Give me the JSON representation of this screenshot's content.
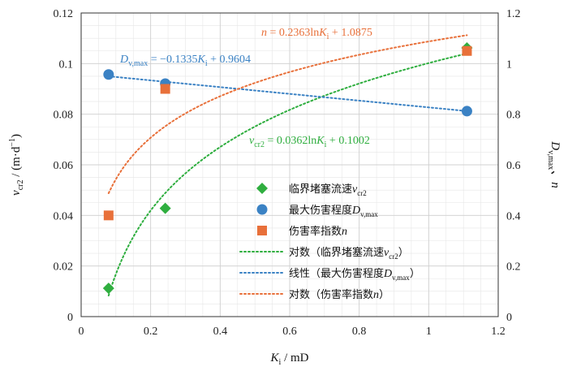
{
  "colors": {
    "green": "#2fae3f",
    "blue": "#3b82c4",
    "orange": "#e8703a",
    "grid": "#d0d0d0",
    "axis": "#333333"
  },
  "chart_data": {
    "type": "scatter",
    "x": {
      "label": "K_i / mD",
      "label_main": "K",
      "label_sub": "i",
      "label_unit": " / mD",
      "range": [
        0,
        1.2
      ],
      "ticks": [
        "0",
        "0.2",
        "0.4",
        "0.6",
        "0.8",
        "1",
        "1.2"
      ]
    },
    "y_left": {
      "label": "v_cr2 / (m·d⁻¹)",
      "label_main": "v",
      "label_sub": "cr2",
      "label_unit": " / (m·d",
      "label_sup": "−1",
      "label_close": ")",
      "range": [
        0,
        0.12
      ],
      "ticks": [
        "0",
        "0.02",
        "0.04",
        "0.06",
        "0.08",
        "0.1",
        "0.12"
      ]
    },
    "y_right": {
      "label": "D_v,max、n",
      "label_main": "D",
      "label_sub": "v,max",
      "label_tail": "、n",
      "range": [
        0,
        1.2
      ],
      "ticks": [
        "0",
        "0.2",
        "0.4",
        "0.6",
        "0.8",
        "1",
        "1.2"
      ]
    },
    "series": [
      {
        "name": "临界堵塞流速v_cr2",
        "axis": "left",
        "marker": "diamond",
        "color": "green",
        "points": [
          [
            0.079,
            0.0112
          ],
          [
            0.242,
            0.0428
          ],
          [
            1.11,
            0.1062
          ]
        ]
      },
      {
        "name": "最大伤害程度D_v,max",
        "axis": "right",
        "marker": "circle",
        "color": "blue",
        "points": [
          [
            0.079,
            0.957
          ],
          [
            0.242,
            0.921
          ],
          [
            1.11,
            0.812
          ]
        ]
      },
      {
        "name": "伤害率指数n",
        "axis": "right",
        "marker": "square",
        "color": "orange",
        "points": [
          [
            0.079,
            0.4
          ],
          [
            0.242,
            0.9
          ],
          [
            1.11,
            1.05
          ]
        ]
      }
    ],
    "trendlines": [
      {
        "name": "对数（临界堵塞流速v_cr2）",
        "type": "log",
        "a": 0.0362,
        "b": 0.1002,
        "axis": "left",
        "color": "green",
        "x_range": [
          0.079,
          1.11
        ],
        "equation": "v_cr2 = 0.0362lnK_i + 0.1002"
      },
      {
        "name": "线性（最大伤害程度D_v,max）",
        "type": "linear",
        "a": -0.1335,
        "b": 0.9604,
        "axis": "right",
        "color": "blue",
        "x_range": [
          0.079,
          1.11
        ],
        "equation": "D_v,max = −0.1335K_i + 0.9604"
      },
      {
        "name": "对数（伤害率指数n）",
        "type": "log",
        "a": 0.2363,
        "b": 1.0875,
        "axis": "right",
        "color": "orange",
        "x_range": [
          0.079,
          1.11
        ],
        "equation": "n = 0.2363lnK_i + 1.0875"
      }
    ],
    "legend": {
      "position": "center-right",
      "entries": [
        {
          "kind": "diamond",
          "color": "green",
          "main": "临界堵塞流速",
          "var": "v",
          "sub": "cr2",
          "tail": ""
        },
        {
          "kind": "circle",
          "color": "blue",
          "main": "最大伤害程度",
          "var": "D",
          "sub": "v,max",
          "tail": ""
        },
        {
          "kind": "square",
          "color": "orange",
          "main": "伤害率指数",
          "var": "n",
          "sub": "",
          "tail": ""
        },
        {
          "kind": "dotline",
          "color": "green",
          "main": "对数（临界堵塞流速",
          "var": "v",
          "sub": "cr2",
          "tail": "）"
        },
        {
          "kind": "dotline",
          "color": "blue",
          "main": "线性（最大伤害程度",
          "var": "D",
          "sub": "v,max",
          "tail": "）"
        },
        {
          "kind": "dotline",
          "color": "orange",
          "main": "对数（伤害率指数",
          "var": "n",
          "sub": "",
          "tail": "）"
        }
      ]
    },
    "annotations": [
      {
        "series": "orange",
        "lhs": "n",
        "lhs_sub": "",
        "rhs1": " = 0.2363ln",
        "var": "K",
        "var_sub": "i",
        "rhs2": " + 1.0875"
      },
      {
        "series": "blue",
        "lhs": "D",
        "lhs_sub": "v,max",
        "rhs1": " = −0.1335",
        "var": "K",
        "var_sub": "i",
        "rhs2": " + 0.9604"
      },
      {
        "series": "green",
        "lhs": "v",
        "lhs_sub": "cr2",
        "rhs1": " = 0.0362ln",
        "var": "K",
        "var_sub": "i",
        "rhs2": " + 0.1002"
      }
    ],
    "grid": true,
    "minor_grid": true
  }
}
